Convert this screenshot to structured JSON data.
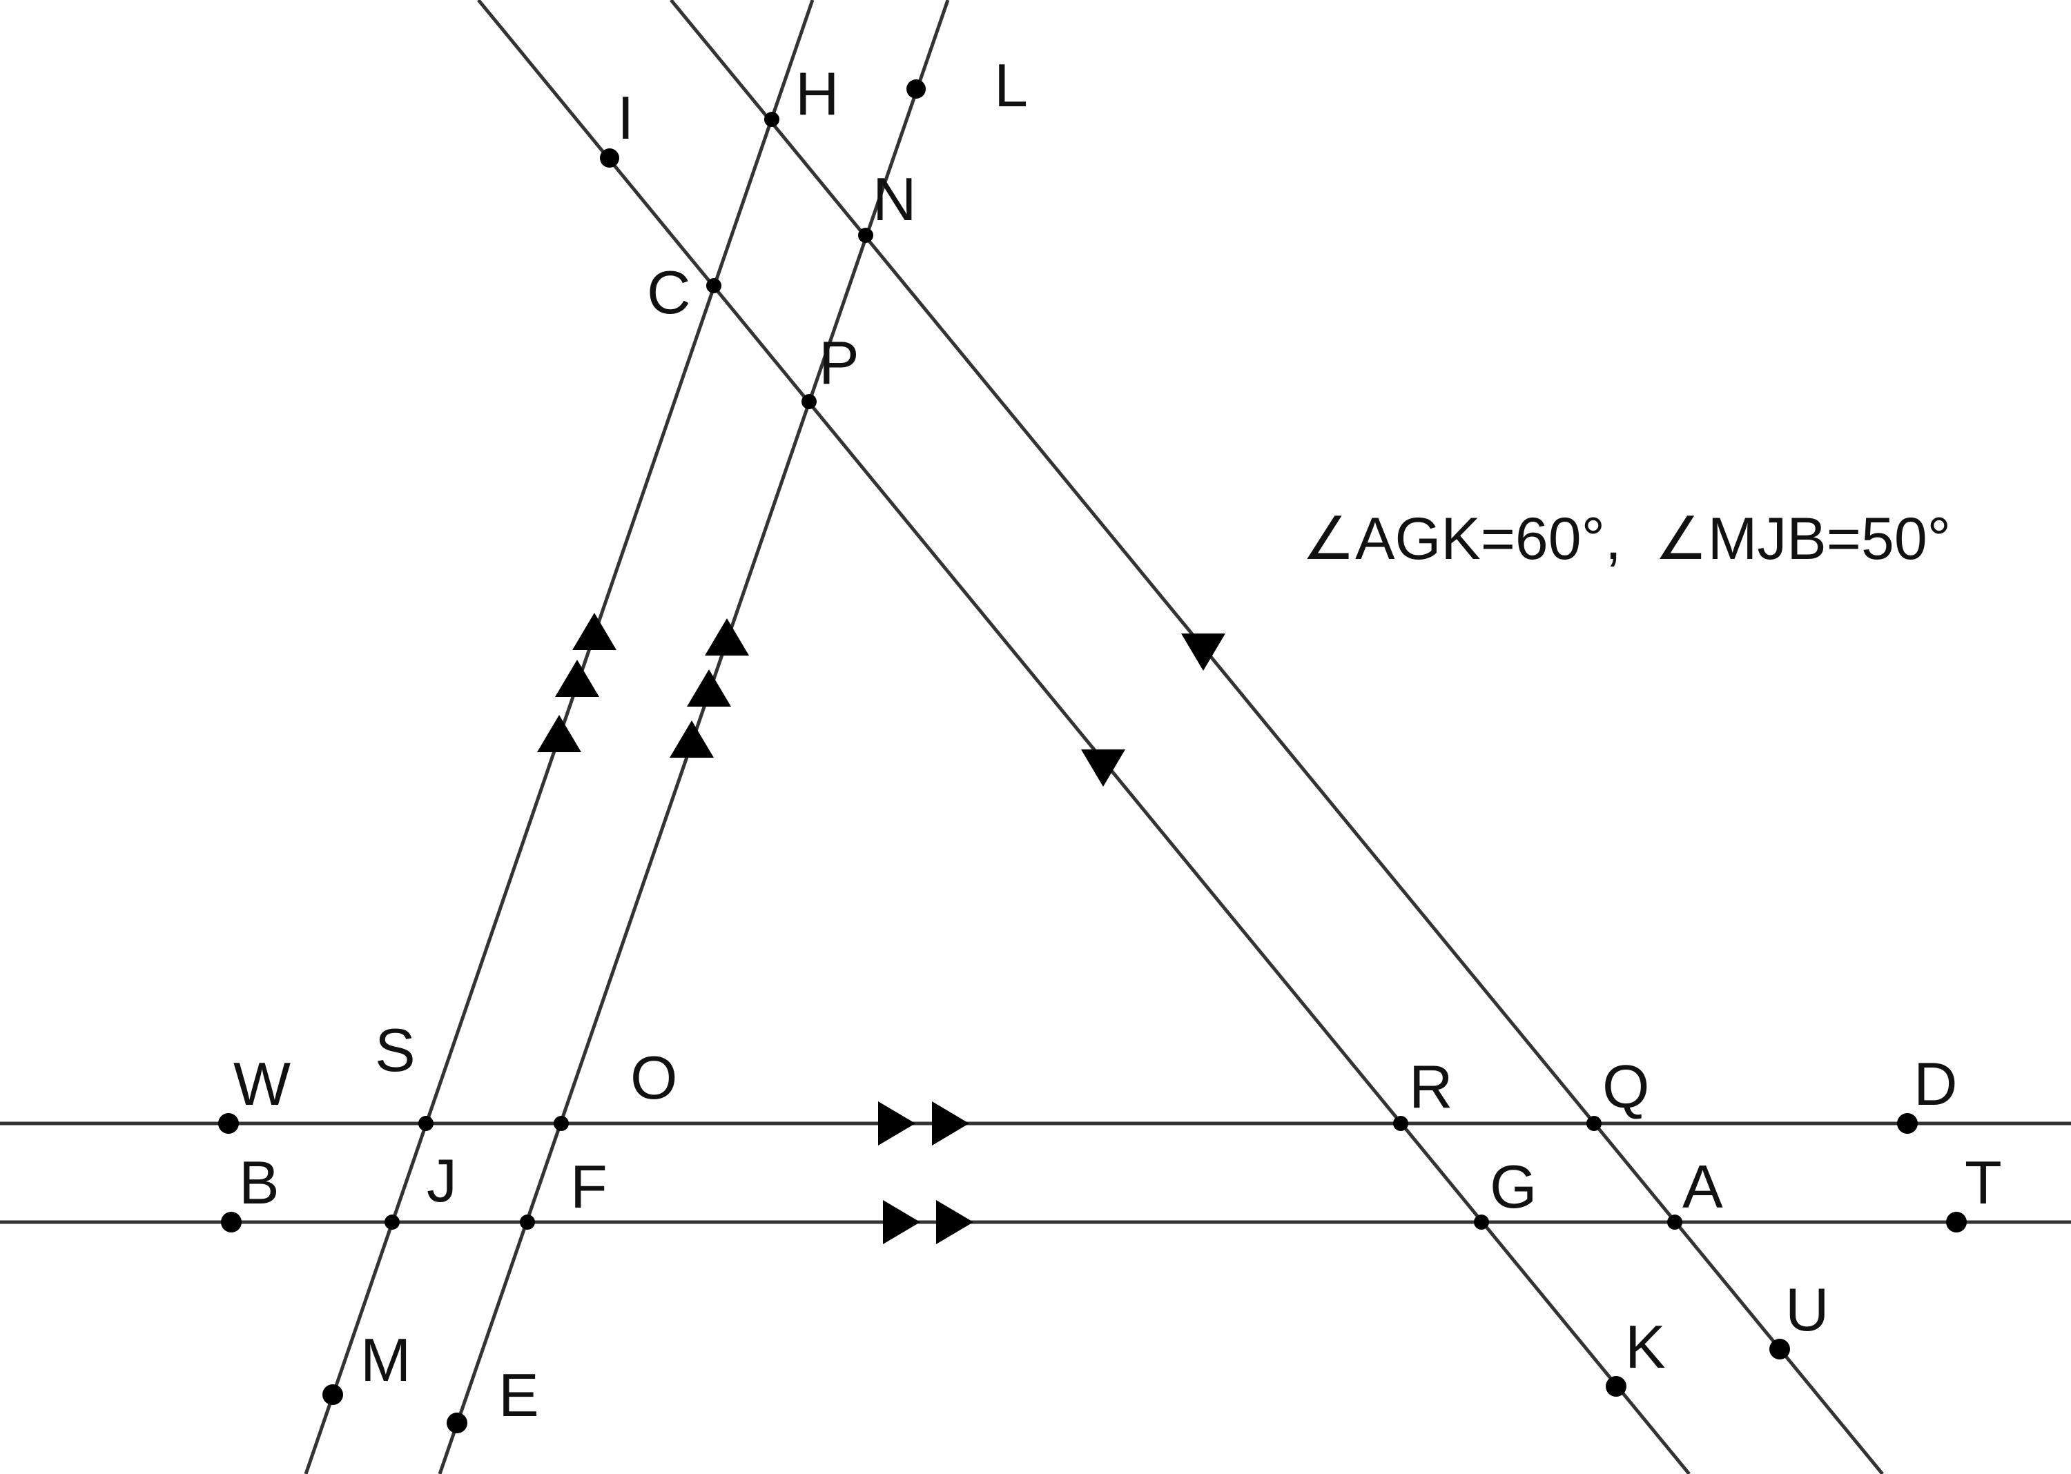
{
  "diagram": {
    "annotation": "∠AGK=60°,  ∠MJB=50°",
    "colors": {
      "line": "#333333",
      "point": "#000000",
      "text": "#111111",
      "background": "#ffffff"
    },
    "point_labels": {
      "I": "I",
      "H": "H",
      "L": "L",
      "N": "N",
      "C": "C",
      "P": "P",
      "W": "W",
      "S": "S",
      "O": "O",
      "R": "R",
      "Q": "Q",
      "D": "D",
      "B": "B",
      "J": "J",
      "F": "F",
      "G": "G",
      "A": "A",
      "T": "T",
      "U": "U",
      "K": "K",
      "M": "M",
      "E": "E"
    },
    "lines": [
      {
        "id": "WD",
        "through": [
          "W",
          "S",
          "O",
          "R",
          "Q",
          "D"
        ],
        "parallel_mark": "double arrow"
      },
      {
        "id": "BT",
        "through": [
          "B",
          "J",
          "F",
          "G",
          "A",
          "T"
        ],
        "parallel_mark": "double arrow"
      },
      {
        "id": "MH",
        "through": [
          "M",
          "J",
          "S",
          "C",
          "H"
        ],
        "parallel_mark": "triple arrow"
      },
      {
        "id": "EL",
        "through": [
          "E",
          "F",
          "O",
          "P",
          "N",
          "L"
        ],
        "parallel_mark": "triple arrow"
      },
      {
        "id": "IK",
        "through": [
          "I",
          "C",
          "P",
          "R",
          "G",
          "K"
        ],
        "parallel_mark": "single arrow"
      },
      {
        "id": "HU",
        "through": [
          "H",
          "N",
          "Q",
          "A",
          "U"
        ],
        "parallel_mark": "single arrow"
      }
    ]
  }
}
